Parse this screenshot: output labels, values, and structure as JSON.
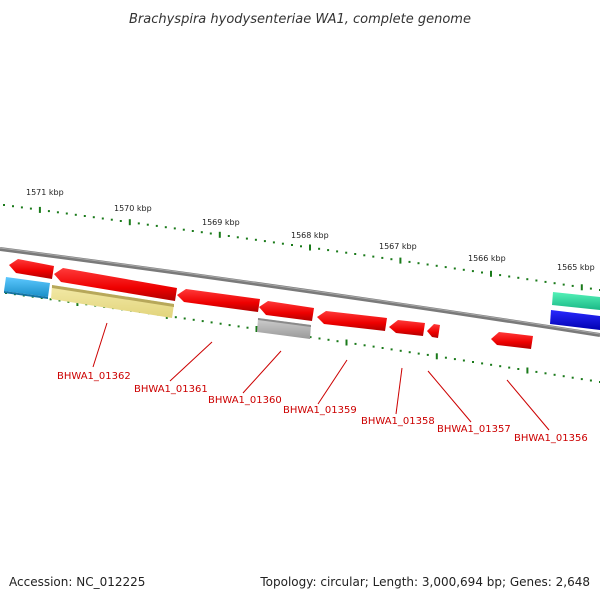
{
  "title": "Brachyspira hyodysenteriae WA1, complete genome",
  "footer": {
    "accession": "Accession: NC_012225",
    "topology": "Topology: circular; Length: 3,000,694 bp; Genes: 2,648"
  },
  "ticks": [
    "1571 kbp",
    "1570 kbp",
    "1569 kbp",
    "1568 kbp",
    "1567 kbp",
    "1566 kbp",
    "1565 kbp"
  ],
  "genes": [
    {
      "label": "BHWA1_01362"
    },
    {
      "label": "BHWA1_01361"
    },
    {
      "label": "BHWA1_01360"
    },
    {
      "label": "BHWA1_01359"
    },
    {
      "label": "BHWA1_01358"
    },
    {
      "label": "BHWA1_01357"
    },
    {
      "label": "BHWA1_01356"
    }
  ],
  "colors": {
    "backbone": "#7a7a7a",
    "cds": "#ff0000",
    "tick_mark": "#1a7a1a",
    "label": "#cc0000",
    "feature_cyan": "#33b3f0",
    "feature_yellow": "#ede49a",
    "feature_gray": "#b5b5b5",
    "feature_teal": "#33e8a5",
    "feature_blue": "#0000e0"
  }
}
